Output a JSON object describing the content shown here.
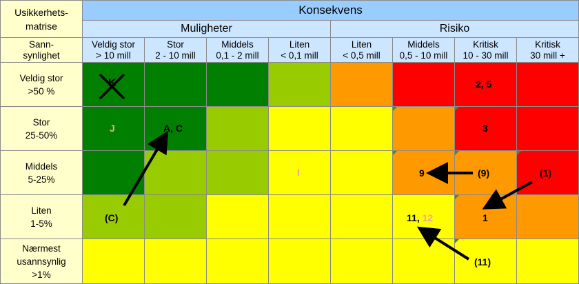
{
  "corner_label": "Usikkerhets-\nmatrise",
  "konsekvens_label": "Konsekvens",
  "muligheter_label": "Muligheter",
  "risiko_label": "Risiko",
  "sannsynlighet_label": "Sann-\nsynlighet",
  "columns": [
    {
      "line1": "Veldig stor",
      "line2": "> 10 mill"
    },
    {
      "line1": "Stor",
      "line2": "2 - 10 mill"
    },
    {
      "line1": "Middels",
      "line2": "0,1 - 2 mill"
    },
    {
      "line1": "Liten",
      "line2": "< 0,1 mill"
    },
    {
      "line1": "Liten",
      "line2": "< 0,5 mill"
    },
    {
      "line1": "Middels",
      "line2": "0,5 - 10 mill"
    },
    {
      "line1": "Kritisk",
      "line2": "10 - 30 mill"
    },
    {
      "line1": "Kritisk",
      "line2": "30 mill +"
    }
  ],
  "rows": [
    {
      "line1": "Veldig stor",
      "line2": ">50 %",
      "line3": ""
    },
    {
      "line1": "Stor",
      "line2": "25-50%",
      "line3": ""
    },
    {
      "line1": "Middels",
      "line2": "5-25%",
      "line3": ""
    },
    {
      "line1": "Liten",
      "line2": "1-5%",
      "line3": ""
    },
    {
      "line1": "Nærmest",
      "line2": "usannsynlig",
      "line3": ">1%"
    }
  ],
  "colors": {
    "header_blue": "#cce6ff",
    "header_top_blue": "#99ccff",
    "label_yellow": "#ffffcc",
    "dark_green": "#007f00",
    "light_green": "#99cc00",
    "yellow": "#ffff00",
    "orange": "#ff9900",
    "red": "#ff0000"
  },
  "cell_colors": [
    [
      "dark_green",
      "dark_green",
      "dark_green",
      "light_green",
      "orange",
      "red",
      "red",
      "red"
    ],
    [
      "dark_green",
      "dark_green",
      "light_green",
      "yellow",
      "yellow",
      "orange",
      "red",
      "red"
    ],
    [
      "dark_green",
      "light_green",
      "light_green",
      "yellow",
      "yellow",
      "orange",
      "orange",
      "red"
    ],
    [
      "light_green",
      "light_green",
      "yellow",
      "yellow",
      "yellow",
      "yellow",
      "orange",
      "orange"
    ],
    [
      "yellow",
      "yellow",
      "yellow",
      "yellow",
      "yellow",
      "yellow",
      "yellow",
      "yellow"
    ]
  ],
  "markers": {
    "k_crossed": "K",
    "r0c6": "2, 5",
    "r1c0": "J",
    "r1c1": "A, C",
    "r1c6": "3",
    "r2c3": "I",
    "r2c5": "9",
    "r2c6": "(9)",
    "r2c7": "(1)",
    "r3c0": "(C)",
    "r3c5a": "11",
    "r3c5sep": ",",
    "r3c5b": "12",
    "r3c6": "1",
    "r4c6": "(11)"
  }
}
